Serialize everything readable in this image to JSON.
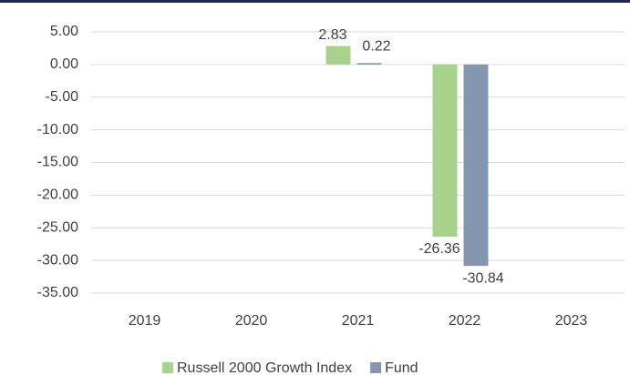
{
  "chart_data": {
    "type": "bar",
    "categories": [
      "2019",
      "2020",
      "2021",
      "2022",
      "2023"
    ],
    "series": [
      {
        "name": "Russell 2000 Growth Index",
        "color": "#a9d18e",
        "values": [
          null,
          null,
          2.83,
          -26.36,
          null
        ]
      },
      {
        "name": "Fund",
        "color": "#8497b0",
        "values": [
          null,
          null,
          0.22,
          -30.84,
          null
        ]
      }
    ],
    "ylim": [
      -35,
      5
    ],
    "yticks": [
      {
        "value": 5,
        "label": "5.00"
      },
      {
        "value": 0,
        "label": "0.00"
      },
      {
        "value": -5,
        "label": "-5.00"
      },
      {
        "value": -10,
        "label": "-10.00"
      },
      {
        "value": -15,
        "label": "-15.00"
      },
      {
        "value": -20,
        "label": "-20.00"
      },
      {
        "value": -25,
        "label": "-25.00"
      },
      {
        "value": -30,
        "label": "-30.00"
      },
      {
        "value": -35,
        "label": "-35.00"
      }
    ],
    "grid": true,
    "legend": "bottom"
  }
}
